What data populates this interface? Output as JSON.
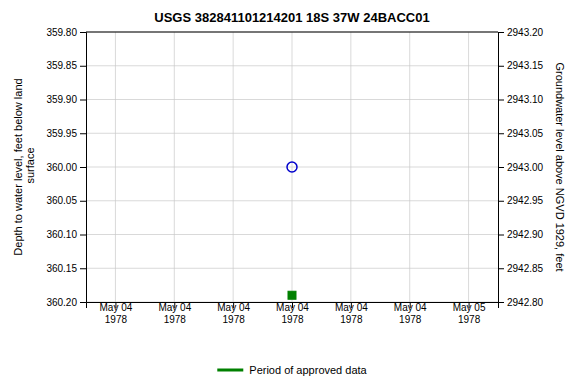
{
  "chart_data": {
    "type": "scatter",
    "title": "USGS 382841101214201 18S 37W 24BACC01",
    "ylabel": "Depth to water level, feet below land\n surface",
    "y2label": "Groundwater level above NGVD 1929, feet",
    "categories": [
      "May 04\n1978",
      "May 04\n1978",
      "May 04\n1978",
      "May 04\n1978",
      "May 04\n1978",
      "May 04\n1978",
      "May 05\n1978"
    ],
    "series": [
      {
        "color": "#0000cc",
        "marker": "open-circle",
        "values": [
          null,
          null,
          null,
          360.0,
          null,
          null,
          null
        ]
      },
      {
        "name": "Period of approved data",
        "color": "#008000",
        "marker": "square",
        "values": [
          null,
          null,
          null,
          360.19,
          null,
          null,
          null
        ]
      }
    ],
    "ylim": [
      360.2,
      359.8
    ],
    "yticks": [
      {
        "value": 359.8,
        "label": "359.80"
      },
      {
        "value": 359.85,
        "label": "359.85"
      },
      {
        "value": 359.9,
        "label": "359.90"
      },
      {
        "value": 359.95,
        "label": "359.95"
      },
      {
        "value": 360.0,
        "label": "360.00"
      },
      {
        "value": 360.05,
        "label": "360.05"
      },
      {
        "value": 360.1,
        "label": "360.10"
      },
      {
        "value": 360.15,
        "label": "360.15"
      },
      {
        "value": 360.2,
        "label": "360.20"
      }
    ],
    "y2lim": [
      2942.8,
      2943.2
    ],
    "y2ticks": [
      {
        "value": 2942.8,
        "label": "2942.80"
      },
      {
        "value": 2942.85,
        "label": "2942.85"
      },
      {
        "value": 2942.9,
        "label": "2942.90"
      },
      {
        "value": 2942.95,
        "label": "2942.95"
      },
      {
        "value": 2943.0,
        "label": "2943.00"
      },
      {
        "value": 2943.05,
        "label": "2943.05"
      },
      {
        "value": 2943.1,
        "label": "2943.10"
      },
      {
        "value": 2943.15,
        "label": "2943.15"
      },
      {
        "value": 2943.2,
        "label": "2943.20"
      }
    ],
    "grid": true
  }
}
